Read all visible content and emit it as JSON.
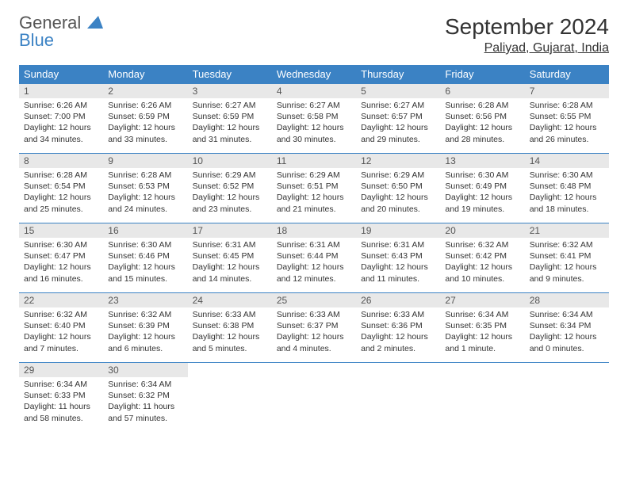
{
  "logo": {
    "word1": "General",
    "word2": "Blue"
  },
  "title": "September 2024",
  "location": "Paliyad, Gujarat, India",
  "colors": {
    "header_bg": "#3b82c4",
    "header_text": "#ffffff",
    "daynum_bg": "#e8e8e8",
    "row_border": "#3b82c4",
    "page_bg": "#ffffff",
    "body_text": "#333333"
  },
  "weekdays": [
    "Sunday",
    "Monday",
    "Tuesday",
    "Wednesday",
    "Thursday",
    "Friday",
    "Saturday"
  ],
  "weeks": [
    [
      {
        "n": "1",
        "sr": "Sunrise: 6:26 AM",
        "ss": "Sunset: 7:00 PM",
        "d1": "Daylight: 12 hours",
        "d2": "and 34 minutes."
      },
      {
        "n": "2",
        "sr": "Sunrise: 6:26 AM",
        "ss": "Sunset: 6:59 PM",
        "d1": "Daylight: 12 hours",
        "d2": "and 33 minutes."
      },
      {
        "n": "3",
        "sr": "Sunrise: 6:27 AM",
        "ss": "Sunset: 6:59 PM",
        "d1": "Daylight: 12 hours",
        "d2": "and 31 minutes."
      },
      {
        "n": "4",
        "sr": "Sunrise: 6:27 AM",
        "ss": "Sunset: 6:58 PM",
        "d1": "Daylight: 12 hours",
        "d2": "and 30 minutes."
      },
      {
        "n": "5",
        "sr": "Sunrise: 6:27 AM",
        "ss": "Sunset: 6:57 PM",
        "d1": "Daylight: 12 hours",
        "d2": "and 29 minutes."
      },
      {
        "n": "6",
        "sr": "Sunrise: 6:28 AM",
        "ss": "Sunset: 6:56 PM",
        "d1": "Daylight: 12 hours",
        "d2": "and 28 minutes."
      },
      {
        "n": "7",
        "sr": "Sunrise: 6:28 AM",
        "ss": "Sunset: 6:55 PM",
        "d1": "Daylight: 12 hours",
        "d2": "and 26 minutes."
      }
    ],
    [
      {
        "n": "8",
        "sr": "Sunrise: 6:28 AM",
        "ss": "Sunset: 6:54 PM",
        "d1": "Daylight: 12 hours",
        "d2": "and 25 minutes."
      },
      {
        "n": "9",
        "sr": "Sunrise: 6:28 AM",
        "ss": "Sunset: 6:53 PM",
        "d1": "Daylight: 12 hours",
        "d2": "and 24 minutes."
      },
      {
        "n": "10",
        "sr": "Sunrise: 6:29 AM",
        "ss": "Sunset: 6:52 PM",
        "d1": "Daylight: 12 hours",
        "d2": "and 23 minutes."
      },
      {
        "n": "11",
        "sr": "Sunrise: 6:29 AM",
        "ss": "Sunset: 6:51 PM",
        "d1": "Daylight: 12 hours",
        "d2": "and 21 minutes."
      },
      {
        "n": "12",
        "sr": "Sunrise: 6:29 AM",
        "ss": "Sunset: 6:50 PM",
        "d1": "Daylight: 12 hours",
        "d2": "and 20 minutes."
      },
      {
        "n": "13",
        "sr": "Sunrise: 6:30 AM",
        "ss": "Sunset: 6:49 PM",
        "d1": "Daylight: 12 hours",
        "d2": "and 19 minutes."
      },
      {
        "n": "14",
        "sr": "Sunrise: 6:30 AM",
        "ss": "Sunset: 6:48 PM",
        "d1": "Daylight: 12 hours",
        "d2": "and 18 minutes."
      }
    ],
    [
      {
        "n": "15",
        "sr": "Sunrise: 6:30 AM",
        "ss": "Sunset: 6:47 PM",
        "d1": "Daylight: 12 hours",
        "d2": "and 16 minutes."
      },
      {
        "n": "16",
        "sr": "Sunrise: 6:30 AM",
        "ss": "Sunset: 6:46 PM",
        "d1": "Daylight: 12 hours",
        "d2": "and 15 minutes."
      },
      {
        "n": "17",
        "sr": "Sunrise: 6:31 AM",
        "ss": "Sunset: 6:45 PM",
        "d1": "Daylight: 12 hours",
        "d2": "and 14 minutes."
      },
      {
        "n": "18",
        "sr": "Sunrise: 6:31 AM",
        "ss": "Sunset: 6:44 PM",
        "d1": "Daylight: 12 hours",
        "d2": "and 12 minutes."
      },
      {
        "n": "19",
        "sr": "Sunrise: 6:31 AM",
        "ss": "Sunset: 6:43 PM",
        "d1": "Daylight: 12 hours",
        "d2": "and 11 minutes."
      },
      {
        "n": "20",
        "sr": "Sunrise: 6:32 AM",
        "ss": "Sunset: 6:42 PM",
        "d1": "Daylight: 12 hours",
        "d2": "and 10 minutes."
      },
      {
        "n": "21",
        "sr": "Sunrise: 6:32 AM",
        "ss": "Sunset: 6:41 PM",
        "d1": "Daylight: 12 hours",
        "d2": "and 9 minutes."
      }
    ],
    [
      {
        "n": "22",
        "sr": "Sunrise: 6:32 AM",
        "ss": "Sunset: 6:40 PM",
        "d1": "Daylight: 12 hours",
        "d2": "and 7 minutes."
      },
      {
        "n": "23",
        "sr": "Sunrise: 6:32 AM",
        "ss": "Sunset: 6:39 PM",
        "d1": "Daylight: 12 hours",
        "d2": "and 6 minutes."
      },
      {
        "n": "24",
        "sr": "Sunrise: 6:33 AM",
        "ss": "Sunset: 6:38 PM",
        "d1": "Daylight: 12 hours",
        "d2": "and 5 minutes."
      },
      {
        "n": "25",
        "sr": "Sunrise: 6:33 AM",
        "ss": "Sunset: 6:37 PM",
        "d1": "Daylight: 12 hours",
        "d2": "and 4 minutes."
      },
      {
        "n": "26",
        "sr": "Sunrise: 6:33 AM",
        "ss": "Sunset: 6:36 PM",
        "d1": "Daylight: 12 hours",
        "d2": "and 2 minutes."
      },
      {
        "n": "27",
        "sr": "Sunrise: 6:34 AM",
        "ss": "Sunset: 6:35 PM",
        "d1": "Daylight: 12 hours",
        "d2": "and 1 minute."
      },
      {
        "n": "28",
        "sr": "Sunrise: 6:34 AM",
        "ss": "Sunset: 6:34 PM",
        "d1": "Daylight: 12 hours",
        "d2": "and 0 minutes."
      }
    ],
    [
      {
        "n": "29",
        "sr": "Sunrise: 6:34 AM",
        "ss": "Sunset: 6:33 PM",
        "d1": "Daylight: 11 hours",
        "d2": "and 58 minutes."
      },
      {
        "n": "30",
        "sr": "Sunrise: 6:34 AM",
        "ss": "Sunset: 6:32 PM",
        "d1": "Daylight: 11 hours",
        "d2": "and 57 minutes."
      },
      {
        "empty": true
      },
      {
        "empty": true
      },
      {
        "empty": true
      },
      {
        "empty": true
      },
      {
        "empty": true
      }
    ]
  ]
}
